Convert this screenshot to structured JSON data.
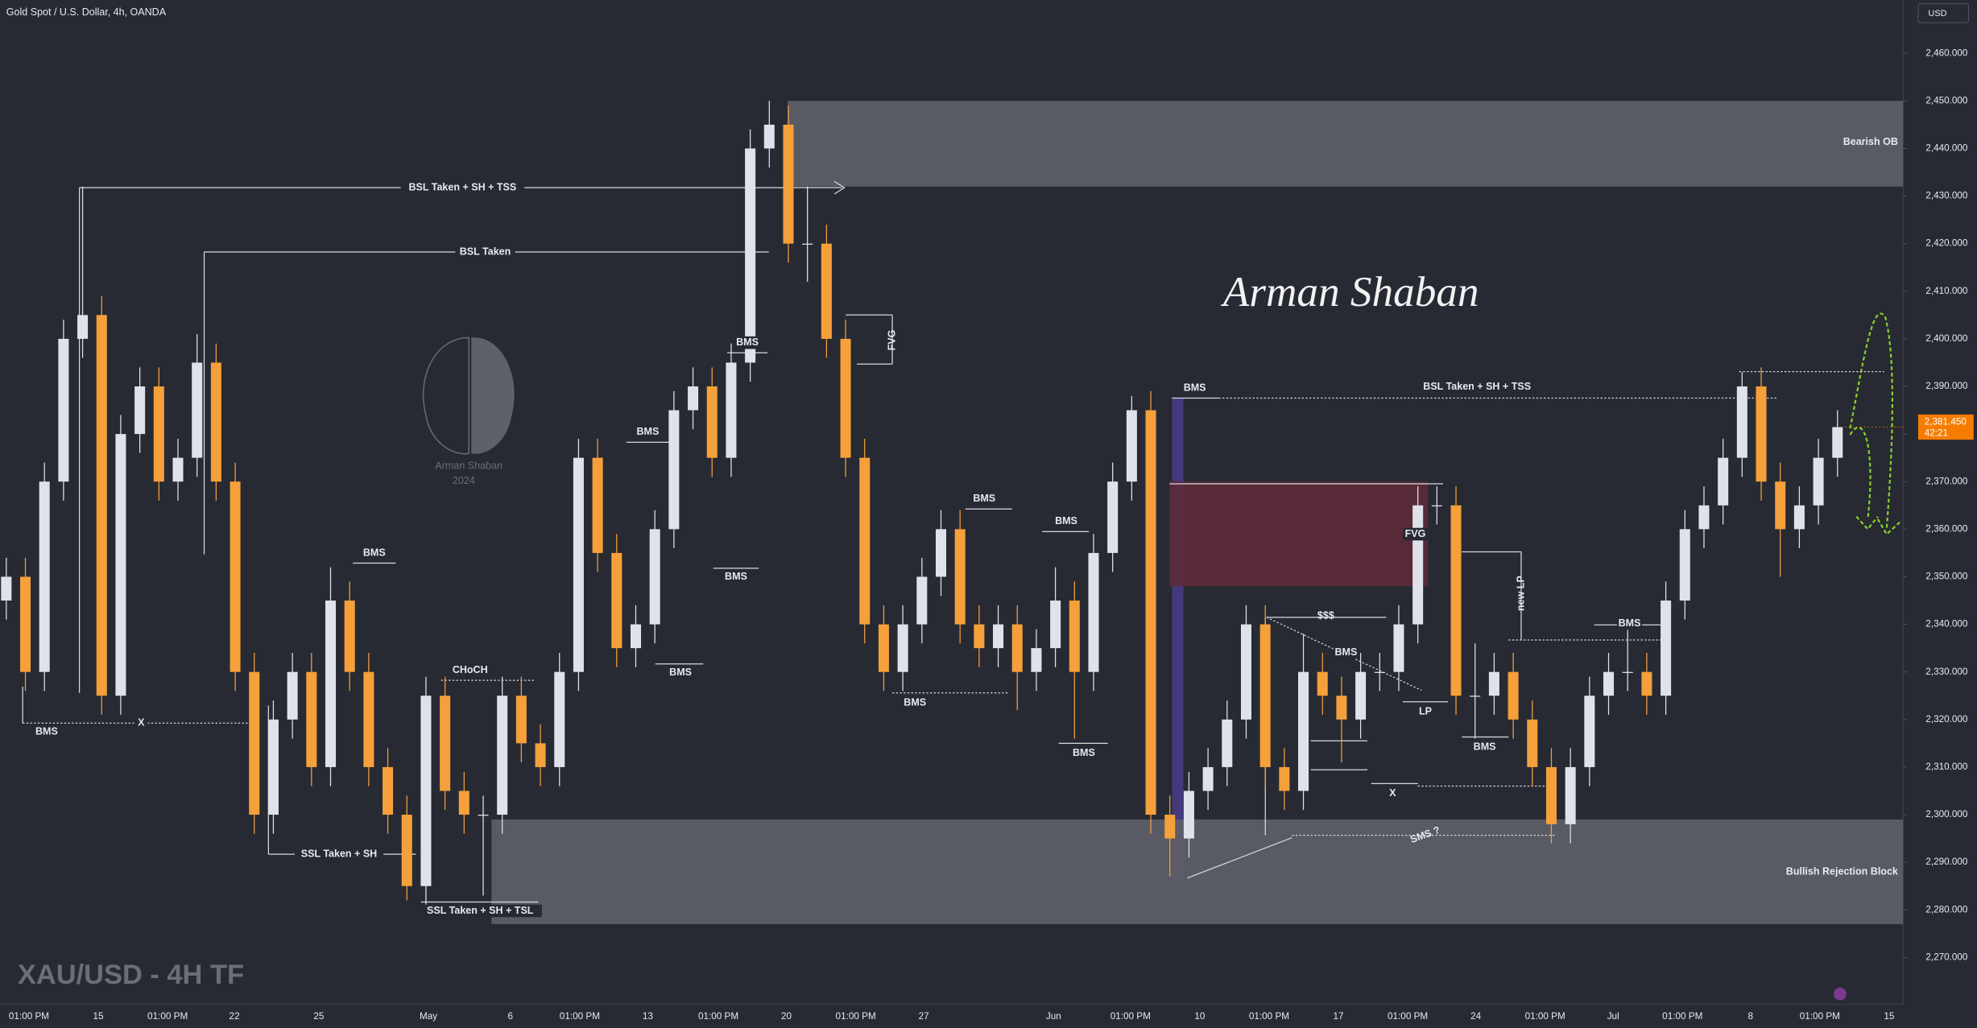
{
  "chart_data": {
    "type": "candlestick",
    "title": "Gold Spot / U.S. Dollar, 4h, OANDA",
    "currency": "USD",
    "watermark": "XAU/USD - 4H TF",
    "signature": "Arman Shaban",
    "logo_text": [
      "Arman Shaban",
      "2024"
    ],
    "up_color": "#dfe2ea",
    "down_color": "#f5a03a",
    "ylim": [
      2260.2,
      2471.2
    ],
    "yticks": [
      {
        "value": 2270,
        "label": "2,270.000"
      },
      {
        "value": 2280,
        "label": "2,280.000"
      },
      {
        "value": 2290,
        "label": "2,290.000"
      },
      {
        "value": 2300,
        "label": "2,300.000"
      },
      {
        "value": 2310,
        "label": "2,310.000"
      },
      {
        "value": 2320,
        "label": "2,320.000"
      },
      {
        "value": 2330,
        "label": "2,330.000"
      },
      {
        "value": 2340,
        "label": "2,340.000"
      },
      {
        "value": 2350,
        "label": "2,350.000"
      },
      {
        "value": 2360,
        "label": "2,360.000"
      },
      {
        "value": 2370,
        "label": "2,370.000"
      },
      {
        "value": 2380,
        "label": "2,380.000"
      },
      {
        "value": 2390,
        "label": "2,390.000"
      },
      {
        "value": 2400,
        "label": "2,400.000"
      },
      {
        "value": 2410,
        "label": "2,410.000"
      },
      {
        "value": 2420,
        "label": "2,420.000"
      },
      {
        "value": 2430,
        "label": "2,430.000"
      },
      {
        "value": 2440,
        "label": "2,440.000"
      },
      {
        "value": 2450,
        "label": "2,450.000"
      },
      {
        "value": 2460,
        "label": "2,460.000"
      }
    ],
    "grid": false,
    "xlabels": [
      "01:00 PM",
      "15",
      "01:00 PM",
      "22",
      "25",
      "May",
      "6",
      "01:00 PM",
      "13",
      "01:00 PM",
      "20",
      "01:00 PM",
      "27",
      "Jun",
      "01:00 PM",
      "10",
      "01:00 PM",
      "17",
      "01:00 PM",
      "24",
      "01:00 PM",
      "Jul",
      "01:00 PM",
      "8",
      "01:00 PM",
      "15"
    ],
    "open": [
      2345,
      2350,
      2330,
      2370,
      2400,
      2405,
      2325,
      2380,
      2390,
      2370,
      2375,
      2395,
      2370,
      2330,
      2300,
      2320,
      2330,
      2310,
      2345,
      2330,
      2310,
      2300,
      2285,
      2325,
      2305,
      2300,
      2300,
      2325,
      2315,
      2310,
      2330,
      2375,
      2355,
      2335,
      2340,
      2360,
      2385,
      2390,
      2375,
      2395,
      2440,
      2445,
      2420,
      2420,
      2400,
      2375,
      2340,
      2330,
      2340,
      2350,
      2360,
      2340,
      2335,
      2340,
      2330,
      2335,
      2345,
      2330,
      2355,
      2370,
      2385,
      2300,
      2295,
      2305,
      2310,
      2320,
      2340,
      2310,
      2305,
      2330,
      2325,
      2320,
      2330,
      2330,
      2340,
      2365,
      2365,
      2325,
      2325,
      2330,
      2320,
      2310,
      2298,
      2310,
      2325,
      2330,
      2330,
      2325,
      2345,
      2360,
      2365,
      2375,
      2390,
      2370,
      2360,
      2365,
      2375
    ],
    "high": [
      2354,
      2354,
      2374,
      2404,
      2432,
      2409,
      2384,
      2394,
      2394,
      2379,
      2401,
      2399,
      2374,
      2334,
      2324,
      2334,
      2334,
      2352,
      2349,
      2334,
      2314,
      2304,
      2329,
      2329,
      2309,
      2304,
      2329,
      2329,
      2319,
      2334,
      2379,
      2379,
      2359,
      2344,
      2364,
      2389,
      2394,
      2394,
      2399,
      2444,
      2450,
      2449,
      2432,
      2424,
      2404,
      2379,
      2344,
      2344,
      2354,
      2364,
      2364,
      2344,
      2344,
      2344,
      2339,
      2352,
      2349,
      2359,
      2374,
      2388,
      2389,
      2304,
      2309,
      2314,
      2324,
      2344,
      2344,
      2314,
      2338,
      2334,
      2329,
      2334,
      2334,
      2344,
      2369,
      2369,
      2369,
      2336,
      2334,
      2334,
      2324,
      2314,
      2314,
      2329,
      2334,
      2340,
      2334,
      2349,
      2364,
      2369,
      2379,
      2393,
      2394,
      2374,
      2369,
      2379,
      2385
    ],
    "low": [
      2341,
      2326,
      2326,
      2366,
      2396,
      2321,
      2321,
      2376,
      2366,
      2366,
      2371,
      2366,
      2326,
      2296,
      2296,
      2316,
      2306,
      2306,
      2326,
      2306,
      2296,
      2282,
      2281,
      2301,
      2296,
      2283,
      2296,
      2311,
      2306,
      2306,
      2326,
      2351,
      2331,
      2331,
      2336,
      2356,
      2381,
      2371,
      2371,
      2391,
      2436,
      2416,
      2412,
      2396,
      2371,
      2336,
      2326,
      2326,
      2336,
      2346,
      2336,
      2331,
      2331,
      2322,
      2326,
      2331,
      2316,
      2326,
      2351,
      2366,
      2296,
      2287,
      2291,
      2301,
      2306,
      2316,
      2306,
      2301,
      2301,
      2321,
      2311,
      2316,
      2326,
      2326,
      2336,
      2361,
      2321,
      2316,
      2321,
      2316,
      2306,
      2294,
      2294,
      2306,
      2321,
      2326,
      2321,
      2321,
      2341,
      2356,
      2361,
      2371,
      2366,
      2350,
      2356,
      2361,
      2371
    ],
    "close": [
      2350,
      2330,
      2370,
      2400,
      2405,
      2325,
      2380,
      2390,
      2370,
      2375,
      2395,
      2370,
      2330,
      2300,
      2320,
      2330,
      2310,
      2345,
      2330,
      2310,
      2300,
      2285,
      2325,
      2305,
      2300,
      2300,
      2325,
      2315,
      2310,
      2330,
      2375,
      2355,
      2335,
      2340,
      2360,
      2385,
      2390,
      2375,
      2395,
      2440,
      2445,
      2420,
      2420,
      2400,
      2375,
      2340,
      2330,
      2340,
      2350,
      2360,
      2340,
      2335,
      2340,
      2330,
      2335,
      2345,
      2330,
      2355,
      2370,
      2385,
      2300,
      2295,
      2305,
      2310,
      2320,
      2340,
      2310,
      2305,
      2330,
      2325,
      2320,
      2330,
      2330,
      2340,
      2365,
      2365,
      2325,
      2325,
      2330,
      2320,
      2310,
      2298,
      2310,
      2325,
      2330,
      2330,
      2325,
      2345,
      2360,
      2365,
      2375,
      2390,
      2370,
      2360,
      2365,
      2375,
      2381.45
    ],
    "last_price": {
      "value": 2381.45,
      "label": "2,381.450"
    },
    "countdown": "42:21",
    "zones": [
      {
        "name": "Bearish OB",
        "low": 2432,
        "high": 2450,
        "color": "#5f6169"
      },
      {
        "name": "Bullish Rejection Block",
        "low": 2277,
        "high": 2299,
        "color": "#5f6169"
      },
      {
        "name": "FVG",
        "low": 2348,
        "high": 2370,
        "color": "#5e2a38"
      }
    ],
    "annotations": [
      "BSL Taken + SH + TSS",
      "BSL Taken",
      "BMS",
      "X",
      "BMS",
      "SSL Taken + SH",
      "SSL Taken + SH + TSL",
      "CHoCH",
      "BMS",
      "BMS",
      "BMS",
      "BMS",
      "FVG",
      "BMS",
      "BMS",
      "BMS",
      "BMS",
      "BMS",
      "BSL Taken + SH + TSS",
      "FVG",
      "new LP",
      "$$$",
      "BMS",
      "LP",
      "BMS",
      "BMS",
      "X",
      "SMS ?"
    ]
  }
}
